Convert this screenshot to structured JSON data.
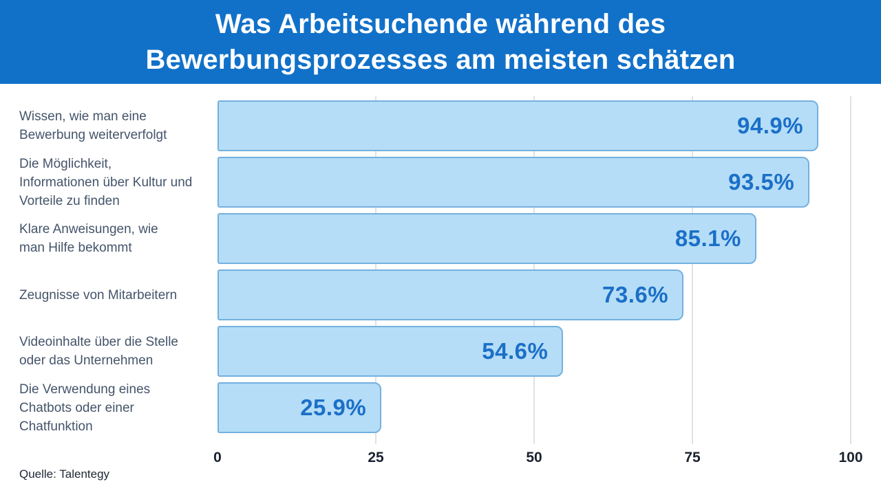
{
  "header": {
    "title": "Was Arbeitsuchende während des\nBewerbungsprozesses am meisten schätzen",
    "background_color": "#1171C9",
    "text_color": "#FFFFFF"
  },
  "chart_data": {
    "type": "bar",
    "orientation": "horizontal",
    "categories": [
      "Wissen, wie man eine\nBewerbung weiterverfolgt",
      "Die Möglichkeit,\nInformationen über Kultur und\nVorteile zu finden",
      "Klare Anweisungen, wie\nman Hilfe bekommt",
      "Zeugnisse von Mitarbeitern",
      "Videoinhalte über die Stelle\noder das Unternehmen",
      "Die Verwendung eines\nChatbots oder einer\nChatfunktion"
    ],
    "values": [
      94.9,
      93.5,
      85.1,
      73.6,
      54.6,
      25.9
    ],
    "value_labels": [
      "94.9%",
      "93.5%",
      "85.1%",
      "73.6%",
      "54.6%",
      "25.9%"
    ],
    "title": "Was Arbeitsuchende während des Bewerbungsprozesses am meisten schätzen",
    "xlabel": "",
    "ylabel": "",
    "xlim": [
      0,
      100
    ],
    "x_ticks": [
      0,
      25,
      50,
      75,
      100
    ],
    "grid": "vertical-gridlines-at-ticks",
    "legend": "none",
    "bar_fill_color": "#B5DDF7",
    "bar_border_color": "#74B0DF",
    "value_label_color": "#1B6FC7",
    "category_label_color": "#44546A",
    "tick_label_color": "#1A2230"
  },
  "footer": {
    "source": "Quelle: Talentegy"
  }
}
